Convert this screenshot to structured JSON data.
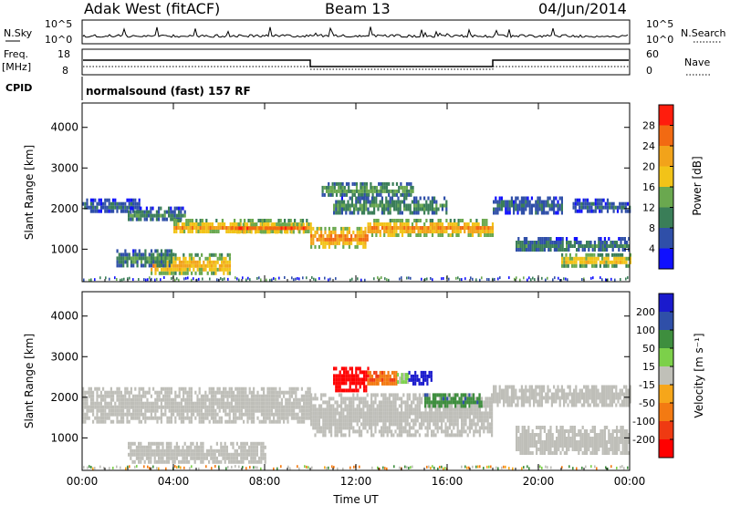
{
  "header": {
    "station": "Adak West (fitACF)",
    "beam": "Beam 13",
    "date": "04/Jun/2014"
  },
  "noise_panel": {
    "left_label": "N.Sky",
    "left_ticks": [
      "10^5",
      "10^0"
    ],
    "right_label": "N.Search",
    "right_ticks": [
      "10^5",
      "10^0"
    ]
  },
  "freq_panel": {
    "left_label_line1": "Freq.",
    "left_label_line2": "[MHz]",
    "left_ticks": [
      "18",
      "8"
    ],
    "right_label": "Nave",
    "right_ticks": [
      "60",
      "0"
    ],
    "cpid_label": "CPID",
    "cpid_text": "normalsound (fast) 157 RF"
  },
  "colors": {
    "power_scale": [
      "#1010ff",
      "#2f4fa8",
      "#3a7e58",
      "#6aa84f",
      "#f2c318",
      "#f2a31a",
      "#f26a12",
      "#ff1d0d"
    ],
    "velocity_scale": [
      "#1a1acd",
      "#2f4fa8",
      "#3e8e3e",
      "#7cd04a",
      "#c0c0b8",
      "#f6a61a",
      "#f37a12",
      "#ef3a12",
      "#ff0000"
    ],
    "ground_scatter": "#bebeb8"
  },
  "chart_data": [
    {
      "type": "heatmap",
      "name": "power",
      "xlabel": "",
      "ylabel": "Slant Range [km]",
      "x_ticks": [
        "00:00",
        "04:00",
        "08:00",
        "12:00",
        "16:00",
        "20:00",
        "00:00"
      ],
      "y_ticks": [
        "1000",
        "2000",
        "3000",
        "4000"
      ],
      "ylim": [
        200,
        4600
      ],
      "xlim_hours": [
        0,
        24
      ],
      "colorbar": {
        "label": "Power [dB]",
        "ticks": [
          "28",
          "24",
          "20",
          "16",
          "12",
          "8",
          "4"
        ],
        "range": [
          0,
          30
        ]
      },
      "bands": [
        {
          "h0": 0.0,
          "h1": 2.5,
          "r0": 1950,
          "r1": 2250,
          "level": 8
        },
        {
          "h0": 2.0,
          "h1": 4.5,
          "r0": 1700,
          "r1": 2050,
          "level": 10
        },
        {
          "h0": 4.0,
          "h1": 10.0,
          "r0": 1400,
          "r1": 1750,
          "level": 22
        },
        {
          "h0": 6.5,
          "h1": 9.8,
          "r0": 1450,
          "r1": 1650,
          "level": 27
        },
        {
          "h0": 10.0,
          "h1": 12.5,
          "r0": 1100,
          "r1": 1550,
          "level": 27
        },
        {
          "h0": 12.5,
          "h1": 18.0,
          "r0": 1350,
          "r1": 1750,
          "level": 24
        },
        {
          "h0": 10.5,
          "h1": 14.5,
          "r0": 2350,
          "r1": 2650,
          "level": 14
        },
        {
          "h0": 11.0,
          "h1": 16.0,
          "r0": 1900,
          "r1": 2300,
          "level": 12
        },
        {
          "h0": 3.0,
          "h1": 6.5,
          "r0": 400,
          "r1": 900,
          "level": 22
        },
        {
          "h0": 1.5,
          "h1": 4.0,
          "r0": 600,
          "r1": 1000,
          "level": 12
        },
        {
          "h0": 18.0,
          "h1": 21.0,
          "r0": 1900,
          "r1": 2300,
          "level": 8
        },
        {
          "h0": 19.0,
          "h1": 24.0,
          "r0": 950,
          "r1": 1300,
          "level": 10
        },
        {
          "h0": 21.0,
          "h1": 24.0,
          "r0": 600,
          "r1": 900,
          "level": 20
        },
        {
          "h0": 21.5,
          "h1": 24.0,
          "r0": 1950,
          "r1": 2250,
          "level": 8
        }
      ]
    },
    {
      "type": "heatmap",
      "name": "velocity",
      "xlabel": "Time UT",
      "ylabel": "Slant Range [km]",
      "x_ticks": [
        "00:00",
        "04:00",
        "08:00",
        "12:00",
        "16:00",
        "20:00",
        "00:00"
      ],
      "y_ticks": [
        "1000",
        "2000",
        "3000",
        "4000"
      ],
      "ylim": [
        200,
        4600
      ],
      "xlim_hours": [
        0,
        24
      ],
      "colorbar": {
        "label": "Velocity [m s⁻¹]",
        "ticks": [
          "200",
          "100",
          "50",
          "15",
          "-15",
          "-50",
          "-100",
          "-200"
        ],
        "range": [
          -250,
          250
        ]
      },
      "bands": [
        {
          "h0": 0.0,
          "h1": 10.0,
          "r0": 1400,
          "r1": 2250,
          "level": 0
        },
        {
          "h0": 10.0,
          "h1": 18.0,
          "r0": 1100,
          "r1": 2100,
          "level": 0
        },
        {
          "h0": 18.0,
          "h1": 24.0,
          "r0": 1800,
          "r1": 2300,
          "level": 0
        },
        {
          "h0": 2.0,
          "h1": 8.0,
          "r0": 400,
          "r1": 900,
          "level": 0
        },
        {
          "h0": 19.0,
          "h1": 24.0,
          "r0": 600,
          "r1": 1300,
          "level": 0
        },
        {
          "h0": 11.0,
          "h1": 12.5,
          "r0": 2200,
          "r1": 2750,
          "level": -200
        },
        {
          "h0": 12.5,
          "h1": 13.8,
          "r0": 2300,
          "r1": 2650,
          "level": -60
        },
        {
          "h0": 13.8,
          "h1": 14.3,
          "r0": 2350,
          "r1": 2600,
          "level": 15
        },
        {
          "h0": 14.3,
          "h1": 15.3,
          "r0": 2350,
          "r1": 2650,
          "level": 220
        },
        {
          "h0": 15.0,
          "h1": 17.5,
          "r0": 1800,
          "r1": 2100,
          "level": 60
        }
      ]
    }
  ]
}
